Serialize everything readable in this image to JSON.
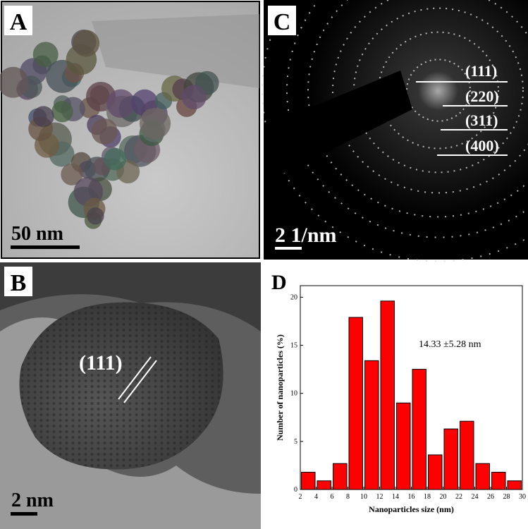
{
  "panels": {
    "A": {
      "label": "A",
      "scale_bar": "50 nm"
    },
    "B": {
      "label": "B",
      "scale_bar": "2 nm",
      "plane": "(111)"
    },
    "C": {
      "label": "C",
      "scale_bar": "2 1/nm",
      "rings": [
        "(111)",
        "(220)",
        "(311)",
        "(400)"
      ]
    },
    "D": {
      "label": "D"
    }
  },
  "chart_data": {
    "type": "histogram",
    "xlabel": "Nanoparticles size (nm)",
    "ylabel": "Number of nanoparticles (%)",
    "annotation": "14.33 ±5.28 nm",
    "bins": [
      2,
      4,
      6,
      8,
      10,
      12,
      14,
      16,
      18,
      20,
      22,
      24,
      26,
      28,
      30
    ],
    "values": [
      1.8,
      0.9,
      2.7,
      17.9,
      13.4,
      19.6,
      9.0,
      12.5,
      3.6,
      6.3,
      7.1,
      2.7,
      1.8,
      0.9
    ],
    "color": "#ff0000",
    "xlim": [
      2,
      30
    ],
    "xticks": [
      2,
      4,
      6,
      8,
      10,
      12,
      14,
      16,
      18,
      20,
      22,
      24,
      26,
      28,
      30
    ],
    "ylim": [
      0,
      21.2
    ],
    "yticks": [
      0,
      5,
      10,
      15,
      20
    ]
  }
}
